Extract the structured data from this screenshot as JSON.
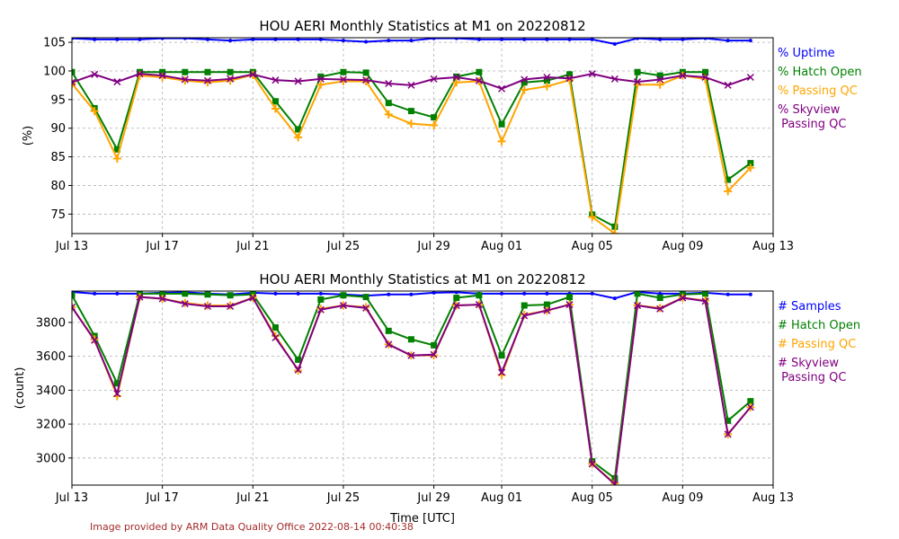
{
  "credit": "Image provided by ARM Data Quality Office 2022-08-14 00:40:38",
  "shared_xlabel": "Time [UTC]",
  "colors": {
    "uptime": "#0000ff",
    "hatch": "#008000",
    "passing": "#ffa500",
    "skyview": "#800080",
    "grid": "#b0b0b0"
  },
  "chart_data": [
    {
      "type": "line",
      "title": "HOU AERI Monthly Statistics at M1 on 20220812",
      "xlabel": "",
      "ylabel": "(%)",
      "xlim": [
        "2022-07-13",
        "2022-08-13"
      ],
      "ylim": [
        71.6,
        105.8
      ],
      "xticks": [
        "Jul 13",
        "Jul 17",
        "Jul 21",
        "Jul 25",
        "Jul 29",
        "Aug 01",
        "Aug 05",
        "Aug 09",
        "Aug 13"
      ],
      "yticks": [
        75,
        80,
        85,
        90,
        95,
        100,
        105
      ],
      "grid": true,
      "legend_placement": "right",
      "x": [
        "2022-07-13",
        "2022-07-14",
        "2022-07-15",
        "2022-07-16",
        "2022-07-17",
        "2022-07-18",
        "2022-07-19",
        "2022-07-20",
        "2022-07-21",
        "2022-07-22",
        "2022-07-23",
        "2022-07-24",
        "2022-07-25",
        "2022-07-26",
        "2022-07-27",
        "2022-07-28",
        "2022-07-29",
        "2022-07-30",
        "2022-07-31",
        "2022-08-01",
        "2022-08-02",
        "2022-08-03",
        "2022-08-04",
        "2022-08-05",
        "2022-08-06",
        "2022-08-07",
        "2022-08-08",
        "2022-08-09",
        "2022-08-10",
        "2022-08-11",
        "2022-08-12"
      ],
      "series": [
        {
          "name": "% Uptime",
          "color": "#0000ff",
          "marker": "dot",
          "values": [
            105.7,
            105.5,
            105.5,
            105.5,
            105.7,
            105.7,
            105.5,
            105.3,
            105.5,
            105.5,
            105.5,
            105.5,
            105.3,
            105.1,
            105.3,
            105.3,
            105.7,
            105.7,
            105.5,
            105.5,
            105.5,
            105.5,
            105.5,
            105.5,
            104.7,
            105.7,
            105.5,
            105.5,
            105.7,
            105.3,
            105.3
          ]
        },
        {
          "name": "% Hatch Open",
          "color": "#008000",
          "marker": "square",
          "values": [
            99.8,
            93.5,
            86.3,
            99.8,
            99.8,
            99.8,
            99.8,
            99.8,
            99.8,
            94.7,
            89.8,
            99.0,
            99.8,
            99.7,
            94.4,
            93.0,
            91.9,
            99.0,
            99.8,
            90.7,
            98.0,
            98.3,
            99.4,
            74.9,
            72.8,
            99.8,
            99.2,
            99.8,
            99.8,
            81.0,
            83.9
          ]
        },
        {
          "name": "% Passing QC",
          "color": "#ffa500",
          "marker": "plus",
          "values": [
            97.8,
            93.0,
            84.7,
            99.2,
            98.9,
            98.3,
            98.0,
            98.3,
            99.3,
            93.4,
            88.4,
            97.6,
            98.2,
            98.2,
            92.4,
            90.8,
            90.5,
            98.0,
            98.2,
            87.7,
            96.7,
            97.3,
            98.4,
            74.5,
            71.6,
            97.6,
            97.6,
            99.2,
            98.6,
            79.0,
            83.1
          ]
        },
        {
          "name": "% Skyview\n  Passing QC",
          "color": "#800080",
          "marker": "x",
          "values": [
            98.0,
            99.4,
            98.1,
            99.5,
            99.2,
            98.5,
            98.3,
            98.6,
            99.4,
            98.4,
            98.2,
            98.6,
            98.5,
            98.4,
            97.8,
            97.5,
            98.6,
            98.9,
            98.3,
            96.9,
            98.5,
            98.9,
            98.7,
            99.5,
            98.6,
            98.1,
            98.5,
            99.2,
            98.9,
            97.5,
            98.9
          ]
        }
      ]
    },
    {
      "type": "line",
      "title": "HOU AERI Monthly Statistics at M1 on 20220812",
      "xlabel": "Time [UTC]",
      "ylabel": "(count)",
      "xlim": [
        "2022-07-13",
        "2022-08-13"
      ],
      "ylim": [
        2840,
        3985
      ],
      "xticks": [
        "Jul 13",
        "Jul 17",
        "Jul 21",
        "Jul 25",
        "Jul 29",
        "Aug 01",
        "Aug 05",
        "Aug 09",
        "Aug 13"
      ],
      "yticks": [
        3000,
        3200,
        3400,
        3600,
        3800
      ],
      "grid": true,
      "legend_placement": "right",
      "x": [
        "2022-07-13",
        "2022-07-14",
        "2022-07-15",
        "2022-07-16",
        "2022-07-17",
        "2022-07-18",
        "2022-07-19",
        "2022-07-20",
        "2022-07-21",
        "2022-07-22",
        "2022-07-23",
        "2022-07-24",
        "2022-07-25",
        "2022-07-26",
        "2022-07-27",
        "2022-07-28",
        "2022-07-29",
        "2022-07-30",
        "2022-07-31",
        "2022-08-01",
        "2022-08-02",
        "2022-08-03",
        "2022-08-04",
        "2022-08-05",
        "2022-08-06",
        "2022-08-07",
        "2022-08-08",
        "2022-08-09",
        "2022-08-10",
        "2022-08-11",
        "2022-08-12"
      ],
      "series": [
        {
          "name": "# Samples",
          "color": "#0000ff",
          "marker": "dot",
          "values": [
            3980,
            3970,
            3970,
            3970,
            3975,
            3978,
            3970,
            3965,
            3975,
            3970,
            3970,
            3970,
            3965,
            3958,
            3965,
            3965,
            3975,
            3978,
            3970,
            3970,
            3970,
            3970,
            3970,
            3970,
            3942,
            3980,
            3970,
            3970,
            3975,
            3965,
            3965
          ]
        },
        {
          "name": "# Hatch Open",
          "color": "#008000",
          "marker": "square",
          "values": [
            3960,
            3720,
            3440,
            3970,
            3970,
            3970,
            3965,
            3960,
            3965,
            3770,
            3580,
            3935,
            3960,
            3950,
            3750,
            3700,
            3665,
            3945,
            3960,
            3605,
            3900,
            3905,
            3950,
            2980,
            2880,
            3970,
            3945,
            3965,
            3970,
            3220,
            3335
          ]
        },
        {
          "name": "# Passing QC",
          "color": "#ffa500",
          "marker": "plus",
          "values": [
            3890,
            3700,
            3365,
            3950,
            3940,
            3915,
            3900,
            3900,
            3945,
            3720,
            3515,
            3880,
            3900,
            3890,
            3670,
            3605,
            3605,
            3900,
            3905,
            3490,
            3845,
            3870,
            3905,
            2965,
            2850,
            3900,
            3885,
            3945,
            3930,
            3140,
            3300
          ]
        },
        {
          "name": "# Skyview\n  Passing QC",
          "color": "#800080",
          "marker": "x",
          "values": [
            3890,
            3695,
            3380,
            3950,
            3940,
            3910,
            3895,
            3895,
            3945,
            3710,
            3520,
            3875,
            3900,
            3885,
            3670,
            3605,
            3610,
            3900,
            3905,
            3505,
            3840,
            3870,
            3905,
            2965,
            2845,
            3900,
            3880,
            3945,
            3925,
            3140,
            3300
          ]
        }
      ]
    }
  ]
}
